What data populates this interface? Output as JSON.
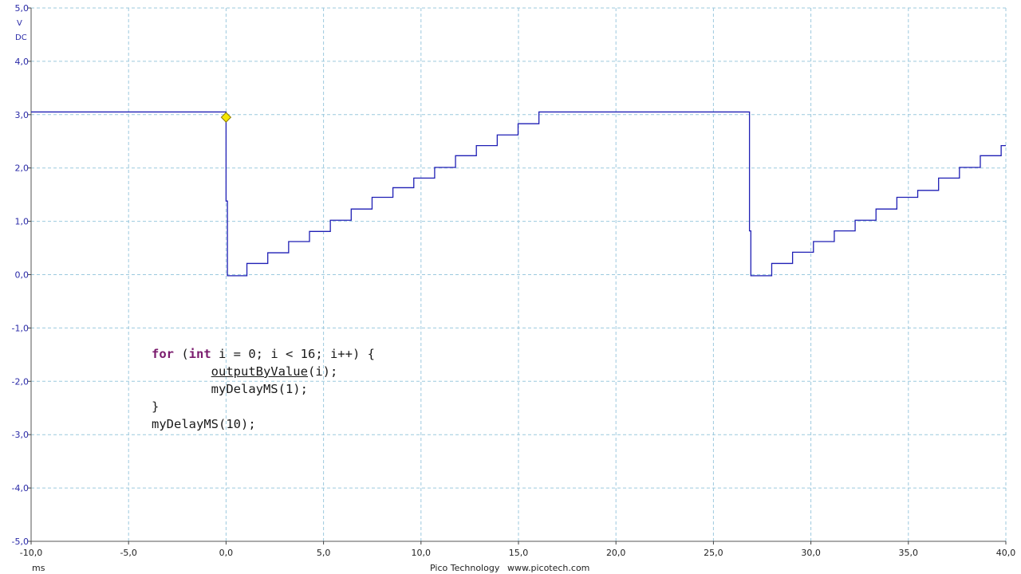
{
  "chart_data": {
    "type": "line",
    "ylabel_unit": "V",
    "ylabel_coupling": "DC",
    "xlabel_unit": "ms",
    "xlim": [
      -10,
      40
    ],
    "ylim": [
      -5,
      5
    ],
    "grid": true,
    "x_ticks": [
      "-10,0",
      "-5,0",
      "0,0",
      "5,0",
      "10,0",
      "15,0",
      "20,0",
      "25,0",
      "30,0",
      "35,0",
      "40,0"
    ],
    "y_ticks": [
      "5,0",
      "4,0",
      "3,0",
      "2,0",
      "1,0",
      "0,0",
      "-1,0",
      "-2,0",
      "-3,0",
      "-4,0",
      "-5,0"
    ],
    "trigger_marker": {
      "x": 0.0,
      "y": 2.95,
      "color": "#f5e600"
    },
    "line_color": "#1f1fb5",
    "series": [
      {
        "x": [
          -10.0,
          0.0,
          0.0,
          0.07,
          0.07,
          1.07,
          1.07,
          2.14,
          2.14,
          3.21,
          3.21,
          4.28,
          4.28,
          5.35,
          5.35,
          6.42,
          6.42,
          7.49,
          7.49,
          8.56,
          8.56,
          9.63,
          9.63,
          10.7,
          10.7,
          11.77,
          11.77,
          12.84,
          12.84,
          13.91,
          13.91,
          14.98,
          14.98,
          16.05,
          16.05,
          26.85,
          26.85,
          26.92,
          26.92,
          27.99,
          27.99,
          29.06,
          29.06,
          30.13,
          30.13,
          31.2,
          31.2,
          32.27,
          32.27,
          33.34,
          33.34,
          34.41,
          34.41,
          35.48,
          35.48,
          36.55,
          36.55,
          37.62,
          37.62,
          38.69,
          38.69,
          39.76,
          39.76,
          40.0
        ],
        "y": [
          3.05,
          3.05,
          1.38,
          1.38,
          -0.02,
          -0.02,
          0.21,
          0.21,
          0.41,
          0.41,
          0.62,
          0.62,
          0.81,
          0.81,
          1.02,
          1.02,
          1.23,
          1.23,
          1.45,
          1.45,
          1.63,
          1.63,
          1.81,
          1.81,
          2.01,
          2.01,
          2.23,
          2.23,
          2.42,
          2.42,
          2.62,
          2.62,
          2.83,
          2.83,
          3.05,
          3.05,
          0.82,
          0.82,
          -0.02,
          -0.02,
          0.21,
          0.21,
          0.42,
          0.42,
          0.62,
          0.62,
          0.82,
          0.82,
          1.02,
          1.02,
          1.23,
          1.23,
          1.45,
          1.45,
          1.58,
          1.58,
          1.81,
          1.81,
          2.01,
          2.01,
          2.23,
          2.23,
          2.42,
          2.42
        ]
      }
    ]
  },
  "annotation": {
    "code_lines": [
      [
        {
          "t": "for",
          "k": "kw"
        },
        {
          "t": " ("
        },
        {
          "t": "int",
          "k": "kw"
        },
        {
          "t": " i = 0; i < 16; i++) {"
        }
      ],
      [
        {
          "t": "        "
        },
        {
          "t": "outputByValue",
          "k": "fn"
        },
        {
          "t": "(i);"
        }
      ],
      [
        {
          "t": "        myDelayMS(1);"
        }
      ],
      [
        {
          "t": "}"
        }
      ],
      [
        {
          "t": "myDelayMS(10);"
        }
      ]
    ]
  },
  "footer": {
    "brand": "Pico Technology",
    "url": "www.picotech.com"
  }
}
